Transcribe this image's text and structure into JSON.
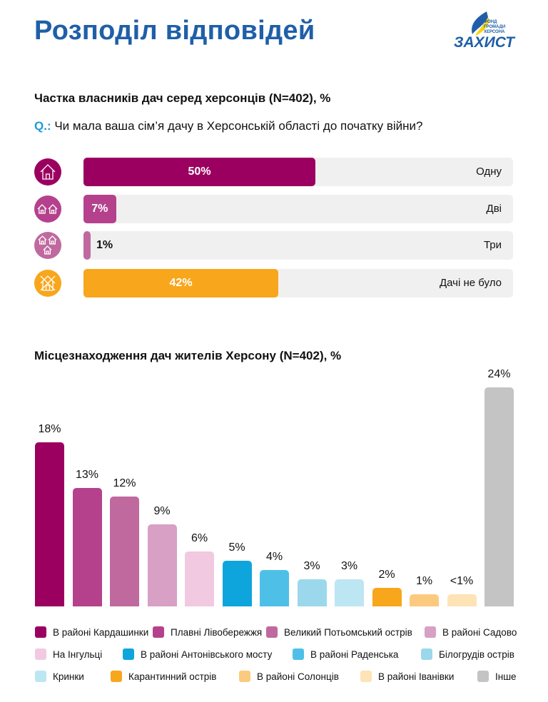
{
  "header": {
    "title": "Розподіл відповідей",
    "logo_text": "ЗАХИСТ",
    "logo_subtext": "ФОНД ГРОМАДИ ХЕРСОНА"
  },
  "section1": {
    "title": "Частка власників дач серед херсонців (N=402), %",
    "question_label": "Q.:",
    "question": "Чи мала ваша сім’я дачу в Херсонській області до початку війни?"
  },
  "section2": {
    "title": "Місцезнаходження дач жителів Херсону (N=402), %"
  },
  "chart_data": [
    {
      "type": "bar",
      "orientation": "horizontal",
      "categories": [
        "Одну",
        "Дві",
        "Три",
        "Дачі не було"
      ],
      "values": [
        50,
        7,
        1,
        42
      ],
      "labels": [
        "50%",
        "7%",
        "1%",
        "42%"
      ],
      "icons": [
        "house-icon",
        "two-houses-icon",
        "three-houses-icon",
        "no-house-icon"
      ],
      "colors": [
        "#9b0060",
        "#b5418d",
        "#c0699f",
        "#f8a61c"
      ],
      "xlim": [
        0,
        100
      ]
    },
    {
      "type": "bar",
      "orientation": "vertical",
      "categories": [
        "В районі Кардашинки",
        "Плавні Лівобережжя",
        "Великий Потьомський острів",
        "В районі Садово",
        "На Інгульці",
        "В районі Антонівського мосту",
        "В районі Раденська",
        "Білогрудів острів",
        "Кринки",
        "Карантинний острів",
        "В районі Солонців",
        "В районі Іванівки",
        "Інше"
      ],
      "values": [
        18,
        13,
        12,
        9,
        6,
        5,
        4,
        3,
        3,
        2,
        1,
        0.5,
        24
      ],
      "labels": [
        "18%",
        "13%",
        "12%",
        "9%",
        "6%",
        "5%",
        "4%",
        "3%",
        "3%",
        "2%",
        "1%",
        "<1%",
        "24%"
      ],
      "colors": [
        "#9b0060",
        "#b5418d",
        "#c0699f",
        "#d7a0c4",
        "#f1c9e0",
        "#0ea5dc",
        "#4ec0e8",
        "#9bd8ec",
        "#bde6f3",
        "#f8a61c",
        "#fcca7e",
        "#fde3b5",
        "#c4c4c4"
      ],
      "legend": "bottom"
    }
  ]
}
